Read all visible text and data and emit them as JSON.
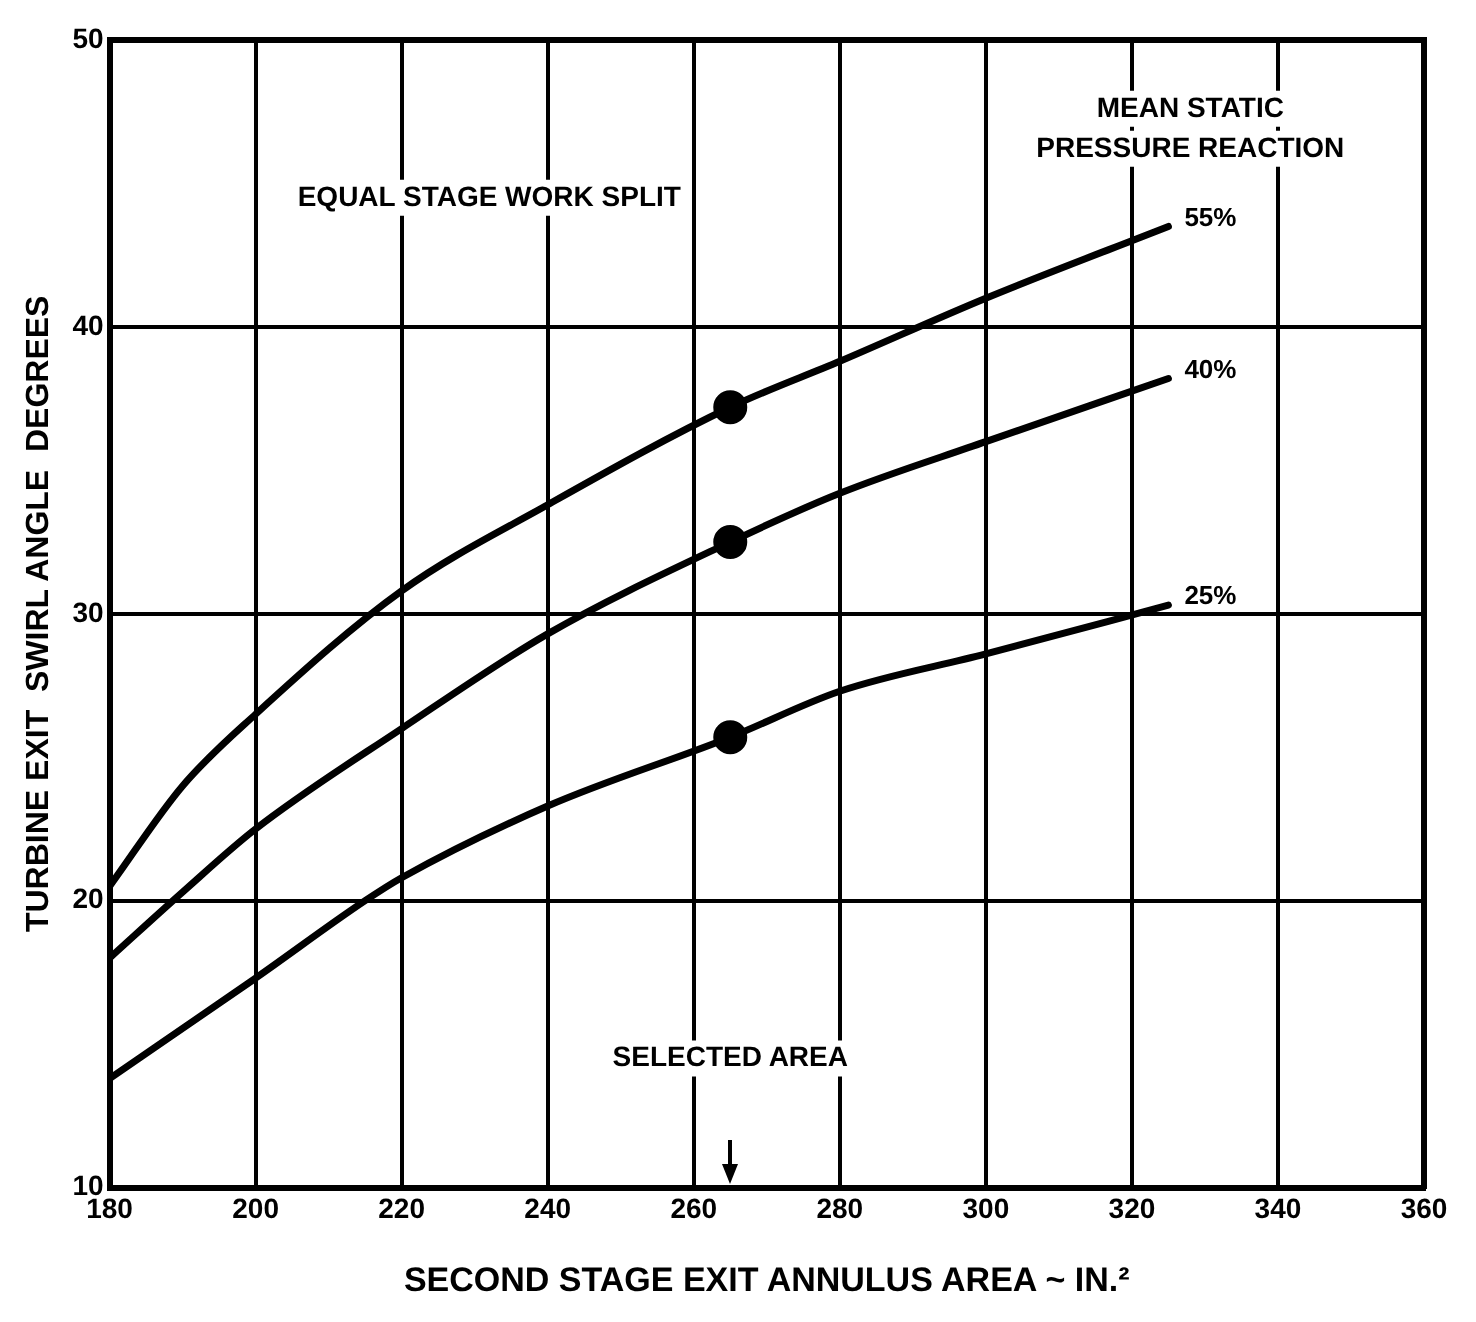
{
  "chart_data": {
    "type": "line",
    "xlabel": "SECOND STAGE EXIT ANNULUS AREA ~ IN.²",
    "ylabel": "TURBINE EXIT  SWIRL ANGLE  DEGREES",
    "legend_title": "MEAN STATIC PRESSURE REACTION",
    "xlim": [
      180,
      360
    ],
    "xticks": [
      180,
      200,
      220,
      240,
      260,
      280,
      300,
      320,
      340,
      360
    ],
    "ylim": [
      10,
      50
    ],
    "yticks": [
      10,
      20,
      30,
      40,
      50
    ],
    "grid": true,
    "legend": false,
    "marker": "none",
    "line_style": "solid",
    "annotations": [
      "EQUAL STAGE WORK SPLIT",
      "SELECTED AREA"
    ],
    "series": [
      {
        "name": "55%",
        "color": "#000000",
        "x": [
          180,
          190,
          200,
          220,
          240,
          265,
          280,
          300,
          325
        ],
        "values": [
          20.5,
          24,
          26.5,
          30.8,
          33.8,
          37.2,
          38.8,
          41,
          43.5
        ]
      },
      {
        "name": "40%",
        "color": "#000000",
        "x": [
          180,
          190,
          200,
          220,
          240,
          265,
          280,
          300,
          325
        ],
        "values": [
          18,
          20.3,
          22.5,
          26,
          29.3,
          32.5,
          34.2,
          36,
          38.2
        ]
      },
      {
        "name": "25%",
        "color": "#000000",
        "x": [
          180,
          200,
          215,
          220,
          240,
          265,
          280,
          300,
          325
        ],
        "values": [
          13.8,
          17.3,
          20,
          20.8,
          23.3,
          25.7,
          27.3,
          28.6,
          30.3
        ]
      },
      {
        "type": "scatter",
        "marker": "circle",
        "color": "#000000",
        "x": [
          265,
          265,
          265
        ],
        "values": [
          37.2,
          32.5,
          25.7
        ]
      }
    ]
  }
}
